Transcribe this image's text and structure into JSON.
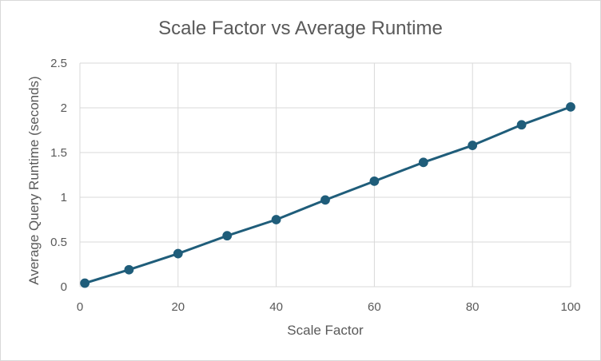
{
  "chart_data": {
    "type": "line",
    "title": "Scale Factor vs Average Runtime",
    "xlabel": "Scale Factor",
    "ylabel": "Average Query Runtime (seconds)",
    "xlim": [
      0,
      100
    ],
    "ylim": [
      0,
      2.5
    ],
    "xticks": [
      "0",
      "20",
      "40",
      "60",
      "80",
      "100"
    ],
    "yticks": [
      "0",
      "0.5",
      "1",
      "1.5",
      "2",
      "2.5"
    ],
    "grid": true,
    "legend": "none",
    "series": [
      {
        "color": "#1f5d7a",
        "points": [
          {
            "x": 1,
            "y": 0.04
          },
          {
            "x": 10,
            "y": 0.19
          },
          {
            "x": 20,
            "y": 0.37
          },
          {
            "x": 30,
            "y": 0.57
          },
          {
            "x": 40,
            "y": 0.75
          },
          {
            "x": 50,
            "y": 0.97
          },
          {
            "x": 60,
            "y": 1.18
          },
          {
            "x": 70,
            "y": 1.39
          },
          {
            "x": 80,
            "y": 1.58
          },
          {
            "x": 90,
            "y": 1.81
          },
          {
            "x": 100,
            "y": 2.01
          }
        ]
      }
    ]
  }
}
